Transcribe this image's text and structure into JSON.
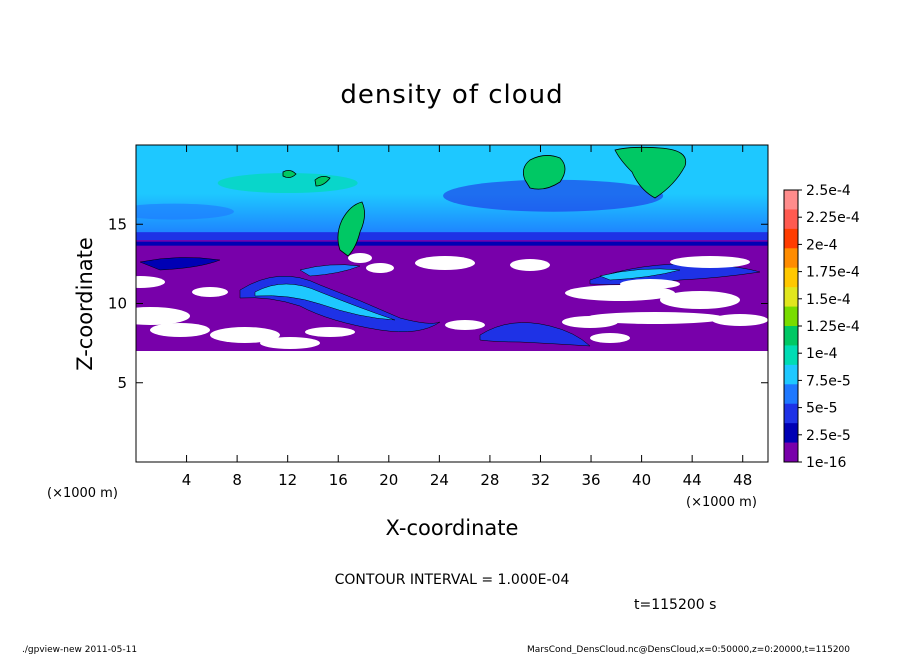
{
  "chart_data": {
    "type": "heatmap",
    "title": "density of cloud",
    "xlabel": "X-coordinate",
    "ylabel": "Z-coordinate",
    "x_unit": "(×1000 m)",
    "z_unit": "(×1000 m)",
    "xlim": [
      0,
      50
    ],
    "ylim": [
      0,
      20
    ],
    "x_ticks": [
      4,
      8,
      12,
      16,
      20,
      24,
      28,
      32,
      36,
      40,
      44,
      48
    ],
    "y_ticks": [
      5,
      10,
      15
    ],
    "colorbar": {
      "labels": [
        "2.5e-4",
        "2.25e-4",
        "2e-4",
        "1.75e-4",
        "1.5e-4",
        "1.25e-4",
        "1e-4",
        "7.5e-5",
        "5e-5",
        "2.5e-5",
        "1e-16"
      ],
      "colors": [
        "#ff8c8c",
        "#ff5a50",
        "#ff3c00",
        "#ff8c00",
        "#ffc800",
        "#e1e61e",
        "#78dc00",
        "#00c864",
        "#00dcb4",
        "#1ec8ff",
        "#1e78ff",
        "#1e32e6",
        "#0000b4",
        "#7800aa"
      ]
    },
    "regions": {
      "clear_below_km": 7,
      "dense_layer_km": [
        7,
        14
      ],
      "upper_layer_km": [
        14,
        19.5
      ]
    },
    "contour_interval_text": "CONTOUR INTERVAL = 1.000E-04",
    "time_text": "t=115200 s"
  },
  "footer": {
    "left": "./gpview-new  2011-05-11",
    "right": "MarsCond_DensCloud.nc@DensCloud,x=0:50000,z=0:20000,t=115200"
  }
}
